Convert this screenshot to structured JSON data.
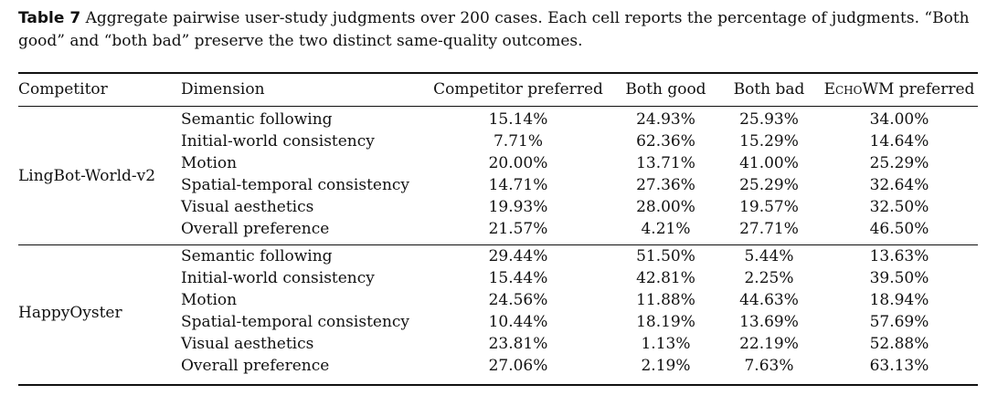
{
  "caption": {
    "label": "Table 7",
    "text": "Aggregate pairwise user-study judgments over 200 cases. Each cell reports the percentage of judgments. “Both good” and “both bad” preserve the two distinct same-quality outcomes."
  },
  "headers": {
    "competitor": "Competitor",
    "dimension": "Dimension",
    "competitor_preferred": "Competitor preferred",
    "both_good": "Both good",
    "both_bad": "Both bad",
    "echo_small": "Echo",
    "echo_suffix": "WM preferred"
  },
  "groups": [
    {
      "competitor": "LingBot-World-v2",
      "rows": [
        {
          "dimension": "Semantic following",
          "competitor_preferred": "15.14%",
          "both_good": "24.93%",
          "both_bad": "25.93%",
          "echowm_preferred": "34.00%",
          "echowm_bold": true
        },
        {
          "dimension": "Initial-world consistency",
          "competitor_preferred": "7.71%",
          "both_good": "62.36%",
          "both_bad": "15.29%",
          "echowm_preferred": "14.64%",
          "echowm_bold": true
        },
        {
          "dimension": "Motion",
          "competitor_preferred": "20.00%",
          "both_good": "13.71%",
          "both_bad": "41.00%",
          "echowm_preferred": "25.29%",
          "echowm_bold": true
        },
        {
          "dimension": "Spatial-temporal consistency",
          "competitor_preferred": "14.71%",
          "both_good": "27.36%",
          "both_bad": "25.29%",
          "echowm_preferred": "32.64%",
          "echowm_bold": true
        },
        {
          "dimension": "Visual aesthetics",
          "competitor_preferred": "19.93%",
          "both_good": "28.00%",
          "both_bad": "19.57%",
          "echowm_preferred": "32.50%",
          "echowm_bold": true
        },
        {
          "dimension": "Overall preference",
          "competitor_preferred": "21.57%",
          "both_good": "4.21%",
          "both_bad": "27.71%",
          "echowm_preferred": "46.50%",
          "echowm_bold": true
        }
      ]
    },
    {
      "competitor": "HappyOyster",
      "rows": [
        {
          "dimension": "Semantic following",
          "competitor_preferred": "29.44%",
          "both_good": "51.50%",
          "both_bad": "5.44%",
          "echowm_preferred": "13.63%",
          "echowm_bold": false
        },
        {
          "dimension": "Initial-world consistency",
          "competitor_preferred": "15.44%",
          "both_good": "42.81%",
          "both_bad": "2.25%",
          "echowm_preferred": "39.50%",
          "echowm_bold": true
        },
        {
          "dimension": "Motion",
          "competitor_preferred": "24.56%",
          "both_good": "11.88%",
          "both_bad": "44.63%",
          "echowm_preferred": "18.94%",
          "echowm_bold": false
        },
        {
          "dimension": "Spatial-temporal consistency",
          "competitor_preferred": "10.44%",
          "both_good": "18.19%",
          "both_bad": "13.69%",
          "echowm_preferred": "57.69%",
          "echowm_bold": true
        },
        {
          "dimension": "Visual aesthetics",
          "competitor_preferred": "23.81%",
          "both_good": "1.13%",
          "both_bad": "22.19%",
          "echowm_preferred": "52.88%",
          "echowm_bold": true
        },
        {
          "dimension": "Overall preference",
          "competitor_preferred": "27.06%",
          "both_good": "2.19%",
          "both_bad": "7.63%",
          "echowm_preferred": "63.13%",
          "echowm_bold": true
        }
      ]
    }
  ]
}
